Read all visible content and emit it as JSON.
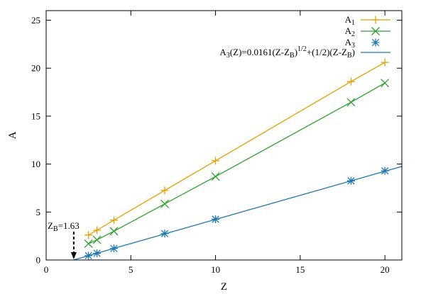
{
  "chart_data": {
    "type": "line",
    "xlabel": "Z",
    "ylabel": "A",
    "xlim": [
      0,
      21
    ],
    "ylim": [
      0,
      26
    ],
    "grid": false,
    "legend_position": "top-right",
    "x_ticks": [
      0,
      5,
      10,
      15,
      20
    ],
    "y_ticks": [
      0,
      5,
      10,
      15,
      20,
      25
    ],
    "series": [
      {
        "key": "A1",
        "name_main": "A",
        "name_sub": "1",
        "color": "#e69f00",
        "marker": "plus",
        "x": [
          2.5,
          3.0,
          4.0,
          7.0,
          10.0,
          18.0,
          20.0
        ],
        "y": [
          2.6,
          3.1,
          4.15,
          7.25,
          10.35,
          18.6,
          20.6
        ]
      },
      {
        "key": "A2",
        "name_main": "A",
        "name_sub": "2",
        "color": "#2ca02c",
        "marker": "cross",
        "x": [
          2.5,
          3.0,
          4.0,
          7.0,
          10.0,
          18.0,
          20.0
        ],
        "y": [
          1.7,
          2.1,
          3.0,
          5.85,
          8.7,
          16.45,
          18.45
        ]
      },
      {
        "key": "A3",
        "name_main": "A",
        "name_sub": "3",
        "color": "#1f77b4",
        "marker": "star",
        "x": [
          2.5,
          3.0,
          4.0,
          7.0,
          10.0,
          18.0,
          20.0
        ],
        "y": [
          0.45,
          0.7,
          1.2,
          2.75,
          4.25,
          8.25,
          9.3
        ]
      }
    ],
    "fit": {
      "color": "#1f77b4",
      "applies_to": "A3",
      "coef": 0.0161,
      "ZB": 1.63,
      "x_range": [
        1.63,
        21
      ],
      "label_parts": {
        "p1": "A",
        "s1": "3",
        "p2": "(Z)=0.0161(Z-Z",
        "s2": "B",
        "p3": ")",
        "sup": "1/2",
        "p4": "+(1/2)(Z-Z",
        "s3": "B",
        "p5": ")"
      }
    },
    "annotation": {
      "label_main": "Z",
      "label_sub": "B",
      "label_value": "=1.63",
      "x": 1.63
    }
  }
}
